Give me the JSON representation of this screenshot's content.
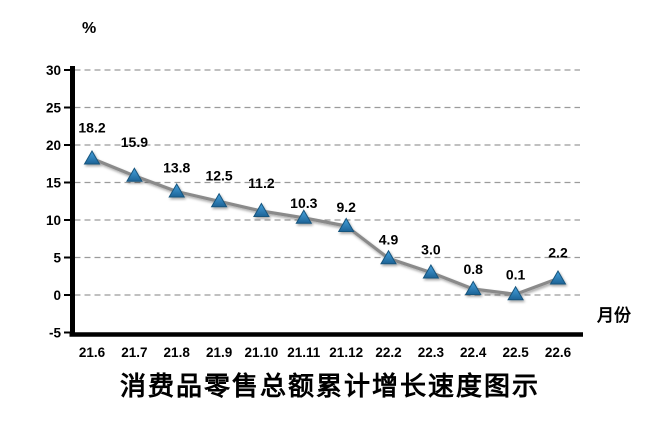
{
  "chart_data": {
    "type": "line",
    "title": "消费品零售总额累计增长速度图示",
    "unit_label": "%",
    "x_axis_label": "月份",
    "categories": [
      "21.6",
      "21.7",
      "21.8",
      "21.9",
      "21.10",
      "21.11",
      "21.12",
      "22.2",
      "22.3",
      "22.4",
      "22.5",
      "22.6"
    ],
    "values": [
      18.2,
      15.9,
      13.8,
      12.5,
      11.2,
      10.3,
      9.2,
      4.9,
      3.0,
      0.8,
      0.1,
      2.2
    ],
    "point_labels": [
      "18.2",
      "15.9",
      "13.8",
      "12.5",
      "11.2",
      "10.3",
      "9.2",
      "4.9",
      "3.0",
      "0.8",
      "0.1",
      "2.2"
    ],
    "y_ticks": [
      30,
      25,
      20,
      15,
      10,
      5,
      0,
      -5
    ],
    "ylim": [
      -5,
      30
    ],
    "grid": "horizontal-dashed",
    "legend": "none",
    "colors": {
      "line": "#8A8A8A",
      "marker_fill_top": "#45A2DE",
      "marker_fill_bottom": "#1D6396",
      "marker_stroke": "#17547D",
      "gridline": "#9B9B9B",
      "axis": "#000000",
      "text": "#000000"
    }
  }
}
